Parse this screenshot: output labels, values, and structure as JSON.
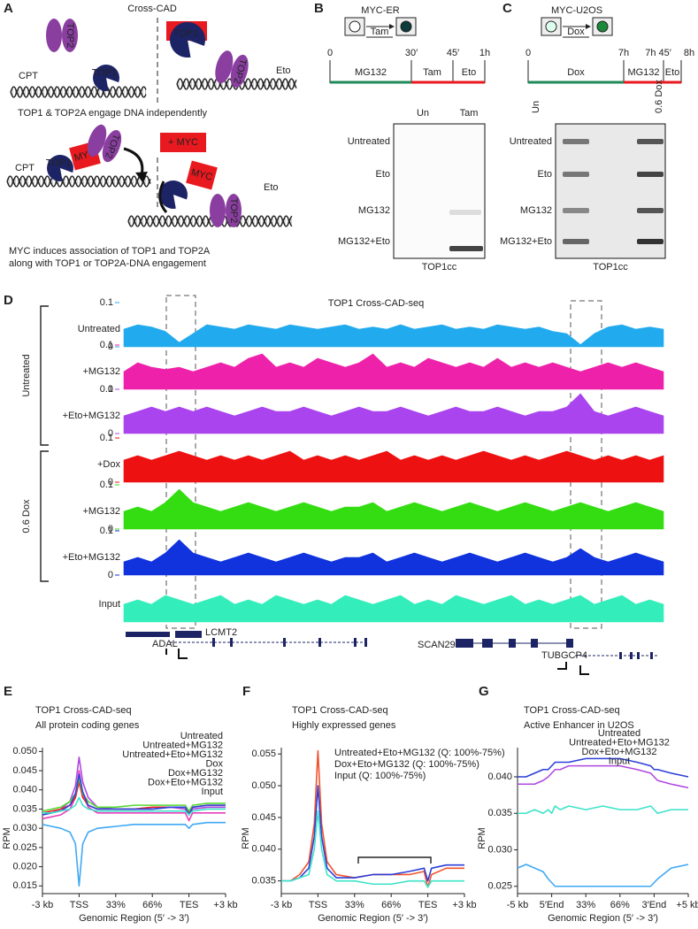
{
  "panels": {
    "A": {
      "label": "A",
      "title": "Cross-CAD",
      "minus_myc": "- MYC",
      "plus_myc": "+ MYC",
      "top1": "TOP1",
      "top2": "TOP2",
      "myc": "MYC",
      "cpt": "CPT",
      "eto": "Eto",
      "caption_top": "TOP1 & TOP2A engage DNA independently",
      "caption_bottom": [
        "MYC induces association of TOP1 and TOP2A",
        "along with TOP1 or TOP2A-DNA engagement"
      ]
    },
    "B": {
      "label": "B",
      "construct": "MYC-ER",
      "treatment": "Tam",
      "timeline_ticks": [
        "0",
        "30′",
        "45′",
        "1h"
      ],
      "segments": [
        "MG132",
        "Tam",
        "Eto"
      ],
      "columns": [
        "Un",
        "Tam"
      ],
      "rows": [
        "Untreated",
        "Eto",
        "MG132",
        "MG132+Eto"
      ],
      "caption": "TOP1cc"
    },
    "C": {
      "label": "C",
      "construct": "MYC-U2OS",
      "treatment": "Dox",
      "timeline_ticks": [
        "0",
        "7h",
        "7h 45′",
        "8h"
      ],
      "segments": [
        "Dox",
        "MG132",
        "Eto"
      ],
      "columns": [
        "Un",
        "0.6 Dox"
      ],
      "rows": [
        "Untreated",
        "Eto",
        "MG132",
        "MG132+Eto"
      ],
      "caption": "TOP1cc"
    },
    "D": {
      "label": "D",
      "title": "TOP1 Cross-CAD-seq",
      "groups": [
        "Untreated",
        "0.6 Dox"
      ],
      "tracks": [
        {
          "name": "Untreated",
          "color": "#22aaee",
          "ylim": [
            0,
            0.1
          ],
          "yticks": [
            0.1,
            0
          ],
          "values": [
            0.04,
            0.05,
            0.045,
            0.035,
            0.01,
            0.03,
            0.05,
            0.045,
            0.04,
            0.05,
            0.045,
            0.04,
            0.05,
            0.045,
            0.04,
            0.045,
            0.05,
            0.04,
            0.045,
            0.04,
            0.05,
            0.04,
            0.045,
            0.05,
            0.04,
            0.045,
            0.04,
            0.05,
            0.045,
            0.04,
            0.045,
            0.035,
            0.03,
            0.005,
            0.03,
            0.045,
            0.05,
            0.04,
            0.045,
            0.04
          ]
        },
        {
          "name": "+MG132",
          "color": "#ee22aa",
          "ylim": [
            0,
            0.1
          ],
          "yticks": [
            0.1,
            0
          ],
          "values": [
            0.04,
            0.06,
            0.05,
            0.045,
            0.05,
            0.04,
            0.05,
            0.06,
            0.05,
            0.07,
            0.08,
            0.05,
            0.06,
            0.05,
            0.07,
            0.06,
            0.05,
            0.06,
            0.08,
            0.05,
            0.06,
            0.05,
            0.07,
            0.06,
            0.05,
            0.06,
            0.05,
            0.07,
            0.05,
            0.06,
            0.05,
            0.06,
            0.05,
            0.04,
            0.05,
            0.06,
            0.05,
            0.06,
            0.05,
            0.04
          ]
        },
        {
          "name": "+Eto+MG132",
          "color": "#aa44ee",
          "ylim": [
            0,
            0.1
          ],
          "yticks": [
            0.1,
            0
          ],
          "values": [
            0.04,
            0.05,
            0.06,
            0.05,
            0.06,
            0.05,
            0.06,
            0.05,
            0.04,
            0.05,
            0.06,
            0.05,
            0.05,
            0.06,
            0.05,
            0.04,
            0.05,
            0.06,
            0.05,
            0.05,
            0.06,
            0.05,
            0.04,
            0.05,
            0.06,
            0.05,
            0.05,
            0.06,
            0.05,
            0.04,
            0.05,
            0.05,
            0.06,
            0.09,
            0.05,
            0.04,
            0.05,
            0.06,
            0.05,
            0.04
          ]
        },
        {
          "name": "+Dox",
          "color": "#ee1111",
          "ylim": [
            0,
            0.1
          ],
          "yticks": [
            0.1,
            0
          ],
          "values": [
            0.05,
            0.06,
            0.05,
            0.06,
            0.07,
            0.06,
            0.05,
            0.06,
            0.05,
            0.06,
            0.05,
            0.06,
            0.07,
            0.05,
            0.06,
            0.05,
            0.06,
            0.05,
            0.06,
            0.07,
            0.05,
            0.06,
            0.05,
            0.06,
            0.05,
            0.06,
            0.07,
            0.06,
            0.05,
            0.06,
            0.05,
            0.06,
            0.07,
            0.06,
            0.05,
            0.06,
            0.05,
            0.06,
            0.05,
            0.06
          ]
        },
        {
          "name": "+MG132",
          "color": "#33dd11",
          "ylim": [
            0,
            0.1
          ],
          "yticks": [
            0.1,
            0
          ],
          "values": [
            0.04,
            0.05,
            0.04,
            0.06,
            0.09,
            0.06,
            0.05,
            0.04,
            0.05,
            0.06,
            0.05,
            0.04,
            0.05,
            0.06,
            0.05,
            0.04,
            0.05,
            0.05,
            0.06,
            0.04,
            0.05,
            0.06,
            0.05,
            0.04,
            0.05,
            0.06,
            0.05,
            0.04,
            0.05,
            0.06,
            0.05,
            0.04,
            0.05,
            0.06,
            0.05,
            0.04,
            0.05,
            0.06,
            0.05,
            0.04
          ]
        },
        {
          "name": "+Eto+MG132",
          "color": "#1133dd",
          "ylim": [
            0,
            0.1
          ],
          "yticks": [
            0.1,
            0
          ],
          "values": [
            0.03,
            0.04,
            0.03,
            0.05,
            0.08,
            0.05,
            0.04,
            0.03,
            0.04,
            0.05,
            0.04,
            0.03,
            0.04,
            0.05,
            0.04,
            0.03,
            0.04,
            0.04,
            0.05,
            0.03,
            0.04,
            0.05,
            0.04,
            0.03,
            0.04,
            0.05,
            0.04,
            0.03,
            0.04,
            0.05,
            0.04,
            0.03,
            0.04,
            0.06,
            0.04,
            0.03,
            0.04,
            0.05,
            0.04,
            0.03
          ]
        },
        {
          "name": "Input",
          "color": "#33eebb",
          "ylim": [
            0,
            0.1
          ],
          "values": [
            0.04,
            0.05,
            0.04,
            0.06,
            0.05,
            0.04,
            0.05,
            0.06,
            0.04,
            0.05,
            0.04,
            0.06,
            0.05,
            0.04,
            0.05,
            0.04,
            0.06,
            0.05,
            0.04,
            0.05,
            0.06,
            0.04,
            0.05,
            0.04,
            0.06,
            0.05,
            0.04,
            0.05,
            0.06,
            0.04,
            0.05,
            0.04,
            0.05,
            0.06,
            0.04,
            0.05,
            0.06,
            0.04,
            0.05,
            0.04
          ]
        }
      ],
      "genes": [
        "ADAL",
        "LCMT2",
        "SCAN29",
        "TUBGCP4"
      ]
    }
  },
  "chart_data": [
    {
      "type": "line",
      "panel_label": "E",
      "title": "TOP1 Cross-CAD-seq",
      "subtitle": "All protein coding genes",
      "ylabel": "RPM",
      "xlabel": "Genomic Region (5′ -> 3′)",
      "x": [
        0,
        5,
        10,
        15,
        18,
        20,
        22,
        25,
        30,
        40,
        50,
        60,
        70,
        78,
        80,
        82,
        90,
        100
      ],
      "xlim": [
        0,
        100
      ],
      "xticks": [
        {
          "value": 0,
          "label": "-3 kb"
        },
        {
          "value": 20,
          "label": "TSS"
        },
        {
          "value": 40,
          "label": "33%"
        },
        {
          "value": 60,
          "label": "66%"
        },
        {
          "value": 80,
          "label": "TES"
        },
        {
          "value": 100,
          "label": "+3 kb"
        }
      ],
      "ylim": [
        0.013,
        0.051
      ],
      "yticks": [
        0.015,
        {
          "value": 0.02,
          "label": "0.020"
        },
        0.025,
        {
          "value": 0.03,
          "label": "0.030"
        },
        0.035,
        {
          "value": 0.04,
          "label": "0.040"
        },
        0.045,
        {
          "value": 0.05,
          "label": "0.050"
        }
      ],
      "series": [
        {
          "name": "Untreated",
          "color": "#3fa9f5",
          "values": [
            0.031,
            0.0305,
            0.03,
            0.029,
            0.026,
            0.015,
            0.026,
            0.029,
            0.03,
            0.0305,
            0.031,
            0.031,
            0.031,
            0.031,
            0.03,
            0.031,
            0.0315,
            0.0315
          ]
        },
        {
          "name": "Untreated+MG132",
          "color": "#e83fbd",
          "values": [
            0.0325,
            0.033,
            0.0335,
            0.035,
            0.038,
            0.045,
            0.039,
            0.0355,
            0.034,
            0.034,
            0.034,
            0.034,
            0.034,
            0.034,
            0.032,
            0.034,
            0.034,
            0.034
          ]
        },
        {
          "name": "Untreated+Eto+MG132",
          "color": "#b048e0",
          "values": [
            0.0335,
            0.034,
            0.035,
            0.037,
            0.041,
            0.0485,
            0.042,
            0.038,
            0.0355,
            0.035,
            0.035,
            0.035,
            0.0355,
            0.035,
            0.0335,
            0.035,
            0.0355,
            0.0355
          ]
        },
        {
          "name": "Dox",
          "color": "#e8241f",
          "values": [
            0.034,
            0.0345,
            0.035,
            0.036,
            0.038,
            0.042,
            0.038,
            0.036,
            0.035,
            0.035,
            0.035,
            0.0355,
            0.0355,
            0.0355,
            0.034,
            0.0355,
            0.036,
            0.036
          ]
        },
        {
          "name": "Dox+MG132",
          "color": "#55d932",
          "values": [
            0.0345,
            0.035,
            0.0355,
            0.037,
            0.039,
            0.043,
            0.039,
            0.037,
            0.0355,
            0.0355,
            0.036,
            0.036,
            0.036,
            0.036,
            0.0345,
            0.036,
            0.0365,
            0.0365
          ]
        },
        {
          "name": "Dox+Eto+MG132",
          "color": "#2a48e0",
          "values": [
            0.0335,
            0.034,
            0.0345,
            0.036,
            0.039,
            0.044,
            0.0395,
            0.036,
            0.035,
            0.035,
            0.035,
            0.035,
            0.0355,
            0.0355,
            0.0335,
            0.0355,
            0.036,
            0.036
          ]
        },
        {
          "name": "Input",
          "color": "#3de3c9",
          "values": [
            0.034,
            0.034,
            0.0345,
            0.035,
            0.036,
            0.038,
            0.036,
            0.035,
            0.0345,
            0.0345,
            0.0345,
            0.0345,
            0.0345,
            0.0345,
            0.0335,
            0.0345,
            0.035,
            0.035
          ]
        }
      ]
    },
    {
      "type": "line",
      "panel_label": "F",
      "title": "TOP1 Cross-CAD-seq",
      "subtitle": "Highly expressed genes",
      "ylabel": "RPM",
      "xlabel": "Genomic Region (5′ -> 3′)",
      "x": [
        0,
        5,
        10,
        15,
        18,
        20,
        22,
        25,
        30,
        40,
        50,
        60,
        70,
        78,
        80,
        82,
        90,
        100
      ],
      "xlim": [
        0,
        100
      ],
      "xticks": [
        {
          "value": 0,
          "label": "-3 kb"
        },
        {
          "value": 20,
          "label": "TSS"
        },
        {
          "value": 40,
          "label": "33%"
        },
        {
          "value": 60,
          "label": "66%"
        },
        {
          "value": 80,
          "label": "TES"
        },
        {
          "value": 100,
          "label": "+3 kb"
        }
      ],
      "ylim": [
        0.033,
        0.056
      ],
      "yticks": [
        0.035,
        {
          "value": 0.04,
          "label": "0.040"
        },
        0.045,
        {
          "value": 0.05,
          "label": "0.050"
        },
        0.055
      ],
      "series": [
        {
          "name": "Untreated+Eto+MG132 (Q: 100%-75%)",
          "color": "#f0532e",
          "values": [
            0.035,
            0.035,
            0.036,
            0.038,
            0.044,
            0.0555,
            0.044,
            0.038,
            0.036,
            0.0355,
            0.036,
            0.036,
            0.036,
            0.0365,
            0.034,
            0.036,
            0.037,
            0.037
          ]
        },
        {
          "name": "Dox+Eto+MG132 (Q: 100%-75%)",
          "color": "#2c3fd9",
          "values": [
            0.035,
            0.035,
            0.0355,
            0.037,
            0.042,
            0.05,
            0.042,
            0.037,
            0.0355,
            0.0355,
            0.036,
            0.036,
            0.0365,
            0.037,
            0.035,
            0.037,
            0.0375,
            0.0375
          ]
        },
        {
          "name": "Input (Q: 100%-75%)",
          "color": "#3de3c9",
          "values": [
            0.035,
            0.035,
            0.0355,
            0.036,
            0.04,
            0.046,
            0.04,
            0.036,
            0.035,
            0.035,
            0.0345,
            0.0345,
            0.035,
            0.035,
            0.034,
            0.035,
            0.035,
            0.035
          ]
        }
      ]
    },
    {
      "type": "line",
      "panel_label": "G",
      "title": "TOP1 Cross-CAD-seq",
      "subtitle": "Active Enhancer in U2OS",
      "ylabel": "RPM",
      "xlabel": "Genomic Region (5′ -> 3′)",
      "x": [
        0,
        5,
        10,
        15,
        18,
        20,
        22,
        25,
        30,
        40,
        50,
        60,
        70,
        78,
        80,
        82,
        90,
        100
      ],
      "xlim": [
        0,
        100
      ],
      "xticks": [
        {
          "value": 0,
          "label": "-5 kb"
        },
        {
          "value": 20,
          "label": "5′End"
        },
        {
          "value": 40,
          "label": "33%"
        },
        {
          "value": 60,
          "label": "66%"
        },
        {
          "value": 80,
          "label": "3′End"
        },
        {
          "value": 100,
          "label": "+5 kb"
        }
      ],
      "ylim": [
        0.024,
        0.044
      ],
      "yticks": [
        0.025,
        {
          "value": 0.03,
          "label": "0.030"
        },
        0.035,
        {
          "value": 0.04,
          "label": "0.040"
        }
      ],
      "series": [
        {
          "name": "Untreated",
          "color": "#3fa9f5",
          "values": [
            0.0275,
            0.028,
            0.0275,
            0.027,
            0.026,
            0.0255,
            0.025,
            0.025,
            0.025,
            0.025,
            0.025,
            0.025,
            0.025,
            0.025,
            0.0255,
            0.026,
            0.0275,
            0.028
          ]
        },
        {
          "name": "Untreated+Eto+MG132",
          "color": "#b048e0",
          "values": [
            0.039,
            0.039,
            0.039,
            0.0395,
            0.04,
            0.0405,
            0.041,
            0.041,
            0.0415,
            0.0415,
            0.0415,
            0.0415,
            0.041,
            0.0405,
            0.04,
            0.0395,
            0.039,
            0.0385
          ]
        },
        {
          "name": "Dox+Eto+MG132",
          "color": "#2c3fd9",
          "values": [
            0.04,
            0.04,
            0.0405,
            0.041,
            0.041,
            0.0415,
            0.042,
            0.042,
            0.042,
            0.0425,
            0.0425,
            0.0425,
            0.042,
            0.0415,
            0.041,
            0.041,
            0.0405,
            0.04
          ]
        },
        {
          "name": "Input",
          "color": "#3de3c9",
          "values": [
            0.035,
            0.035,
            0.0355,
            0.035,
            0.0355,
            0.035,
            0.036,
            0.0355,
            0.036,
            0.0355,
            0.036,
            0.0355,
            0.0355,
            0.036,
            0.0355,
            0.035,
            0.0355,
            0.0355
          ]
        }
      ]
    }
  ]
}
